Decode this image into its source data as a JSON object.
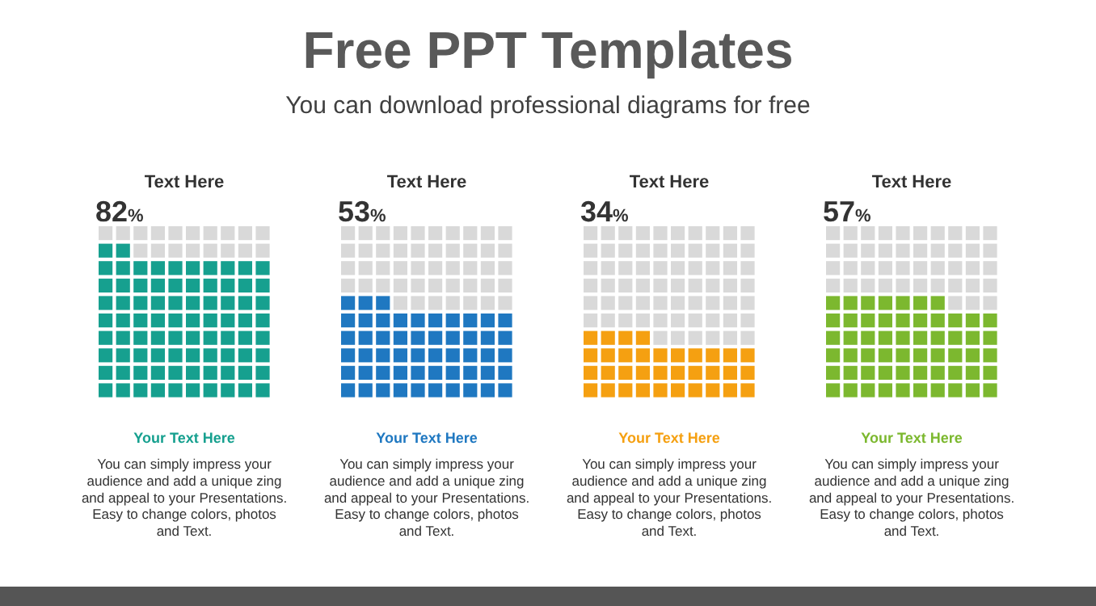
{
  "chart_data": [
    {
      "type": "other",
      "title": "Free PPT Templates",
      "subtitle": "You can download professional diagrams for free"
    },
    {
      "type": "other",
      "title": "Text Here",
      "values": [
        82
      ],
      "value_labels": [
        "82%"
      ],
      "color": "#16a08f",
      "subtitle": "Your Text Here",
      "annotations": [
        "You can simply impress your audience and add a unique zing and appeal to your Presentations. Easy to change colors, photos and Text."
      ]
    },
    {
      "type": "other",
      "title": "Text Here",
      "values": [
        53
      ],
      "value_labels": [
        "53%"
      ],
      "color": "#1f78c1",
      "subtitle": "Your Text Here",
      "annotations": [
        "You can simply impress your audience and add a unique zing and appeal to your Presentations. Easy to change colors, photos and Text."
      ]
    },
    {
      "type": "other",
      "title": "Text Here",
      "values": [
        34
      ],
      "value_labels": [
        "34%"
      ],
      "color": "#f5a011",
      "subtitle": "Your Text Here",
      "annotations": [
        "You can simply impress your audience and add a unique zing and appeal to your Presentations. Easy to change colors, photos and Text."
      ]
    },
    {
      "type": "other",
      "title": "Text Here",
      "values": [
        57
      ],
      "value_labels": [
        "57%"
      ],
      "color": "#7cb82f",
      "subtitle": "Your Text Here",
      "annotations": [
        "You can simply impress your audience and add a unique zing and appeal to your Presentations. Easy to change colors, photos and Text."
      ]
    }
  ]
}
